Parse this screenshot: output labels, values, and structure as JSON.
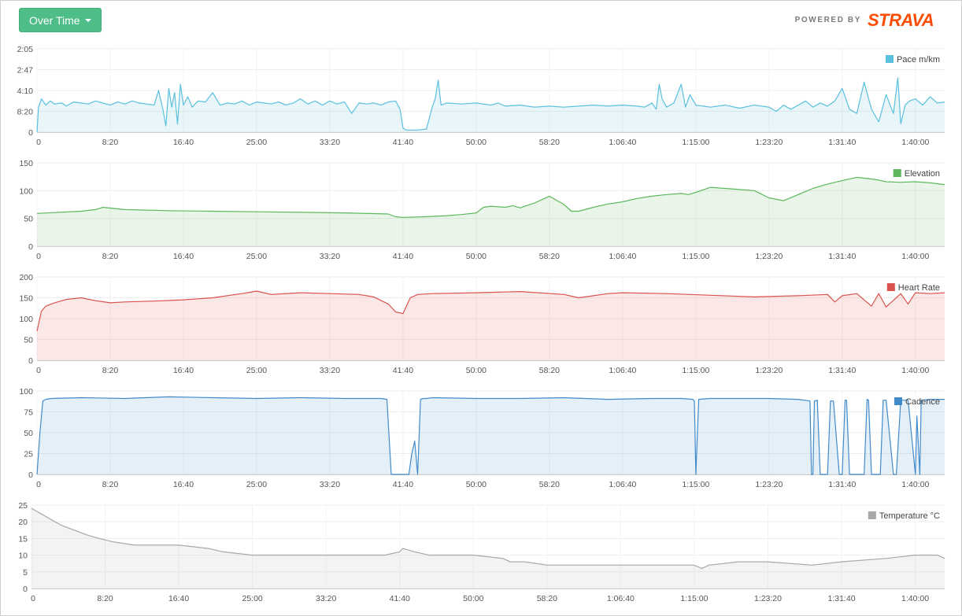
{
  "toolbar": {
    "view_label": "Over Time"
  },
  "brand": {
    "powered_by": "POWERED BY",
    "name": "STRAVA",
    "color": "#fc4c02"
  },
  "x_axis": {
    "min": 0,
    "max": 6200,
    "ticks": [
      0,
      500,
      1000,
      1500,
      2000,
      2500,
      3000,
      3500,
      4000,
      4500,
      5000,
      5500,
      6000
    ],
    "labels": [
      "0",
      "8:20",
      "16:40",
      "25:00",
      "33:20",
      "41:40",
      "50:00",
      "58:20",
      "1:06:40",
      "1:15:00",
      "1:23:20",
      "1:31:40",
      "1:40:00"
    ]
  },
  "chart_data": [
    {
      "type": "area",
      "id": "pace",
      "color": "#5bc0de",
      "legend": "Pace m/km",
      "y_ticks": [
        0,
        1,
        2,
        3,
        4
      ],
      "y_labels": [
        "0",
        "8:20",
        "4:10",
        "2:47",
        "2:05"
      ],
      "ylim": [
        0,
        4
      ],
      "x": [
        0,
        10,
        30,
        60,
        90,
        120,
        170,
        200,
        250,
        300,
        350,
        400,
        450,
        500,
        550,
        600,
        650,
        700,
        750,
        800,
        830,
        860,
        880,
        900,
        920,
        940,
        960,
        980,
        1000,
        1030,
        1060,
        1100,
        1150,
        1200,
        1250,
        1300,
        1350,
        1400,
        1450,
        1500,
        1550,
        1600,
        1650,
        1700,
        1750,
        1800,
        1850,
        1900,
        1950,
        2000,
        2050,
        2100,
        2150,
        2200,
        2250,
        2300,
        2350,
        2400,
        2450,
        2480,
        2500,
        2520,
        2600,
        2660,
        2700,
        2720,
        2740,
        2760,
        2800,
        2900,
        3000,
        3100,
        3150,
        3200,
        3300,
        3400,
        3500,
        3600,
        3700,
        3800,
        3900,
        4000,
        4100,
        4150,
        4200,
        4230,
        4250,
        4270,
        4300,
        4350,
        4400,
        4430,
        4460,
        4500,
        4550,
        4600,
        4700,
        4800,
        4900,
        5000,
        5050,
        5100,
        5150,
        5200,
        5250,
        5300,
        5350,
        5400,
        5450,
        5500,
        5550,
        5600,
        5650,
        5700,
        5750,
        5800,
        5850,
        5880,
        5900,
        5930,
        5960,
        6000,
        6050,
        6100,
        6150,
        6200
      ],
      "y": [
        0,
        1.2,
        1.6,
        1.3,
        1.5,
        1.35,
        1.4,
        1.25,
        1.45,
        1.4,
        1.35,
        1.5,
        1.4,
        1.3,
        1.45,
        1.35,
        1.5,
        1.4,
        1.35,
        1.3,
        2.0,
        1.1,
        0.3,
        2.1,
        1.2,
        1.9,
        0.4,
        2.3,
        1.3,
        1.7,
        1.2,
        1.5,
        1.45,
        1.9,
        1.3,
        1.4,
        1.35,
        1.5,
        1.3,
        1.45,
        1.4,
        1.35,
        1.45,
        1.3,
        1.4,
        1.6,
        1.35,
        1.5,
        1.3,
        1.5,
        1.35,
        1.45,
        0.9,
        1.4,
        1.35,
        1.4,
        1.3,
        1.45,
        1.5,
        1.1,
        0.2,
        0.1,
        0.1,
        0.15,
        1.2,
        1.6,
        2.5,
        1.3,
        1.4,
        1.35,
        1.4,
        1.3,
        1.4,
        1.25,
        1.3,
        1.2,
        1.25,
        1.2,
        1.25,
        1.3,
        1.25,
        1.3,
        1.25,
        1.2,
        1.4,
        1.1,
        2.3,
        1.6,
        1.2,
        1.4,
        2.3,
        1.2,
        1.8,
        1.3,
        1.25,
        1.2,
        1.3,
        1.15,
        1.3,
        1.2,
        1.0,
        1.3,
        1.1,
        1.3,
        1.5,
        1.2,
        1.4,
        1.25,
        1.5,
        2.1,
        1.1,
        0.9,
        2.4,
        1.1,
        0.5,
        1.8,
        0.9,
        2.6,
        0.4,
        1.3,
        1.5,
        1.6,
        1.3,
        1.7,
        1.4,
        1.45
      ]
    },
    {
      "type": "area",
      "id": "elevation",
      "color": "#5cb85c",
      "legend": "Elevation",
      "y_ticks": [
        0,
        50,
        100,
        150
      ],
      "y_labels": [
        "0",
        "50",
        "100",
        "150"
      ],
      "ylim": [
        0,
        150
      ],
      "x": [
        0,
        300,
        400,
        450,
        600,
        900,
        1200,
        1500,
        1800,
        2100,
        2400,
        2450,
        2500,
        2650,
        2800,
        2900,
        3000,
        3050,
        3100,
        3200,
        3250,
        3300,
        3400,
        3500,
        3600,
        3650,
        3700,
        3800,
        3900,
        4000,
        4100,
        4200,
        4300,
        4400,
        4450,
        4500,
        4600,
        4700,
        4800,
        4900,
        5000,
        5100,
        5200,
        5300,
        5400,
        5500,
        5600,
        5700,
        5750,
        5800,
        5900,
        6000,
        6100,
        6200
      ],
      "y": [
        59,
        63,
        66,
        70,
        66,
        64,
        63,
        62,
        61,
        60,
        58,
        53,
        52,
        53,
        55,
        57,
        60,
        70,
        72,
        70,
        73,
        69,
        78,
        90,
        75,
        63,
        63,
        70,
        76,
        80,
        86,
        90,
        93,
        95,
        93,
        97,
        106,
        104,
        102,
        100,
        87,
        82,
        93,
        104,
        112,
        118,
        124,
        121,
        119,
        116,
        115,
        116,
        114,
        111
      ]
    },
    {
      "type": "area",
      "id": "heart-rate",
      "color": "#d9534f",
      "legend": "Heart Rate",
      "y_ticks": [
        0,
        50,
        100,
        150,
        200
      ],
      "y_labels": [
        "0",
        "50",
        "100",
        "150",
        "200"
      ],
      "ylim": [
        0,
        200
      ],
      "x": [
        0,
        30,
        60,
        120,
        200,
        300,
        400,
        500,
        600,
        800,
        1000,
        1200,
        1400,
        1500,
        1600,
        1800,
        2000,
        2200,
        2300,
        2400,
        2450,
        2500,
        2550,
        2600,
        2700,
        3000,
        3300,
        3600,
        3700,
        3800,
        3900,
        4000,
        4300,
        4600,
        4900,
        5200,
        5400,
        5450,
        5500,
        5600,
        5700,
        5750,
        5800,
        5900,
        5950,
        6000,
        6100,
        6200
      ],
      "y": [
        70,
        118,
        130,
        138,
        146,
        150,
        143,
        138,
        140,
        142,
        145,
        150,
        160,
        166,
        158,
        162,
        160,
        158,
        152,
        135,
        116,
        112,
        150,
        158,
        160,
        162,
        165,
        158,
        150,
        155,
        160,
        162,
        160,
        156,
        152,
        155,
        158,
        140,
        155,
        160,
        130,
        160,
        128,
        160,
        135,
        162,
        160,
        162
      ]
    },
    {
      "type": "area",
      "id": "cadence",
      "color": "#428bca",
      "legend": "Cadence",
      "y_ticks": [
        0,
        25,
        50,
        75,
        100
      ],
      "y_labels": [
        "0",
        "25",
        "50",
        "75",
        "100"
      ],
      "ylim": [
        0,
        100
      ],
      "x": [
        0,
        20,
        40,
        60,
        100,
        300,
        600,
        900,
        1200,
        1500,
        1800,
        2100,
        2350,
        2390,
        2420,
        2500,
        2540,
        2560,
        2580,
        2600,
        2620,
        2640,
        2660,
        2700,
        3000,
        3300,
        3600,
        3900,
        4200,
        4400,
        4480,
        4490,
        4500,
        4520,
        4600,
        4800,
        5000,
        5200,
        5280,
        5290,
        5300,
        5310,
        5330,
        5350,
        5400,
        5420,
        5440,
        5480,
        5500,
        5520,
        5530,
        5550,
        5650,
        5670,
        5680,
        5700,
        5760,
        5780,
        5800,
        5850,
        5870,
        5900,
        5950,
        6000,
        6010,
        6030,
        6040,
        6100,
        6200
      ],
      "y": [
        0,
        50,
        88,
        90,
        91,
        92,
        91,
        93,
        92,
        91,
        92,
        91,
        91,
        90,
        0,
        0,
        0,
        25,
        40,
        0,
        90,
        91,
        91,
        92,
        91,
        91,
        92,
        90,
        91,
        91,
        90,
        88,
        0,
        90,
        91,
        91,
        91,
        90,
        88,
        0,
        0,
        88,
        89,
        0,
        0,
        88,
        88,
        0,
        0,
        89,
        89,
        0,
        0,
        90,
        89,
        0,
        0,
        89,
        89,
        0,
        0,
        89,
        89,
        0,
        70,
        0,
        89,
        90,
        90
      ]
    },
    {
      "type": "area",
      "id": "temperature",
      "color": "#a8a8a8",
      "legend": "Temperature °C",
      "y_ticks": [
        0,
        5,
        10,
        15,
        20,
        25
      ],
      "y_labels": [
        "0",
        "5",
        "10",
        "15",
        "20",
        "25"
      ],
      "ylim": [
        0,
        25
      ],
      "x": [
        0,
        40,
        80,
        120,
        160,
        200,
        260,
        320,
        380,
        460,
        550,
        700,
        1000,
        1200,
        1300,
        1500,
        1700,
        1900,
        2100,
        2400,
        2500,
        2520,
        2600,
        2700,
        2800,
        3000,
        3200,
        3250,
        3350,
        3500,
        3800,
        4000,
        4400,
        4500,
        4550,
        4600,
        4800,
        5000,
        5300,
        5500,
        5800,
        6000,
        6150,
        6200
      ],
      "y": [
        24,
        23,
        22,
        21,
        20,
        19,
        18,
        17,
        16,
        15,
        14,
        13,
        13,
        12,
        11,
        10,
        10,
        10,
        10,
        10,
        11,
        12,
        11,
        10,
        10,
        10,
        9,
        8,
        8,
        7,
        7,
        7,
        7,
        7,
        6,
        7,
        8,
        8,
        7,
        8,
        9,
        10,
        10,
        9
      ]
    }
  ]
}
